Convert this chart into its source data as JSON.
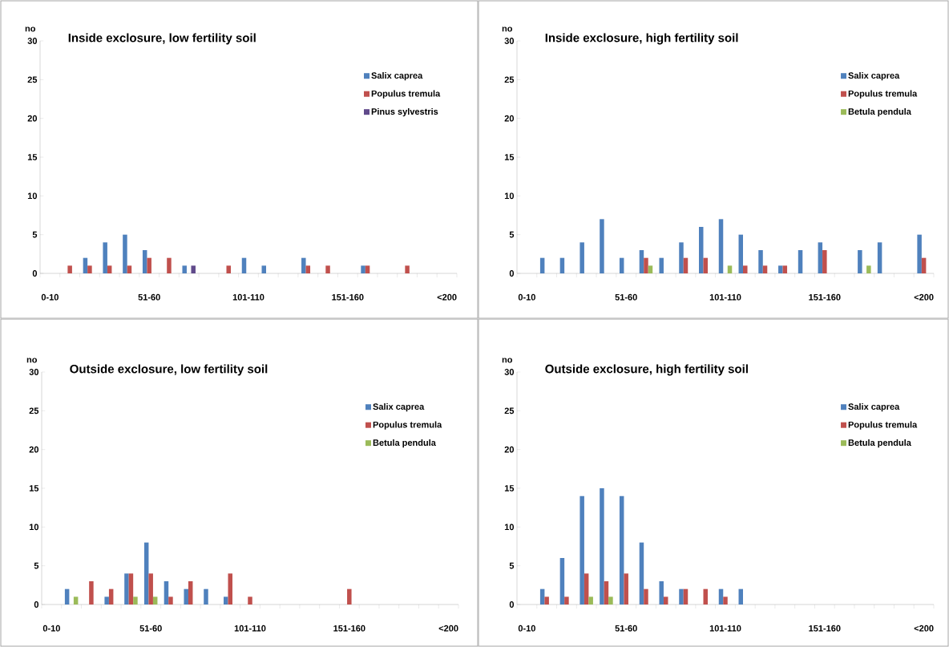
{
  "chart_data": [
    {
      "type": "bar",
      "title": "Inside exclosure, low fertility soil",
      "ylabel": "no",
      "categories": [
        "0-10",
        null,
        null,
        null,
        null,
        "51-60",
        null,
        null,
        null,
        null,
        "101-110",
        null,
        null,
        null,
        null,
        "151-160",
        null,
        null,
        null,
        null,
        "<200"
      ],
      "ylim": [
        0,
        30
      ],
      "yticks": [
        0,
        5,
        10,
        15,
        20,
        25,
        30
      ],
      "legend": "top right",
      "series": [
        {
          "name": "Salix caprea",
          "color": "#4f81bd",
          "values": [
            0,
            0,
            2,
            4,
            5,
            3,
            0,
            1,
            0,
            0,
            2,
            1,
            0,
            2,
            0,
            0,
            1,
            0,
            0,
            0,
            0
          ]
        },
        {
          "name": "Populus tremula",
          "color": "#c0504d",
          "values": [
            0,
            1,
            1,
            1,
            1,
            2,
            2,
            0,
            0,
            1,
            0,
            0,
            0,
            1,
            1,
            0,
            1,
            0,
            1,
            0,
            0
          ]
        },
        {
          "name": "Pinus sylvestris",
          "color": "#604a8b",
          "values": [
            0,
            0,
            0,
            0,
            0,
            0,
            0,
            1,
            0,
            0,
            0,
            0,
            0,
            0,
            0,
            0,
            0,
            0,
            0,
            0,
            0
          ]
        }
      ]
    },
    {
      "type": "bar",
      "title": "Inside exclosure, high fertility soil",
      "ylabel": "no",
      "categories": [
        "0-10",
        null,
        null,
        null,
        null,
        "51-60",
        null,
        null,
        null,
        null,
        "101-110",
        null,
        null,
        null,
        null,
        "151-160",
        null,
        null,
        null,
        null,
        "<200"
      ],
      "ylim": [
        0,
        30
      ],
      "yticks": [
        0,
        5,
        10,
        15,
        20,
        25,
        30
      ],
      "legend": "top right",
      "series": [
        {
          "name": "Salix caprea",
          "color": "#4f81bd",
          "values": [
            0,
            2,
            2,
            4,
            7,
            2,
            3,
            2,
            4,
            6,
            7,
            5,
            3,
            1,
            3,
            4,
            0,
            3,
            4,
            0,
            5
          ]
        },
        {
          "name": "Populus tremula",
          "color": "#c0504d",
          "values": [
            0,
            0,
            0,
            0,
            0,
            0,
            2,
            0,
            2,
            2,
            0,
            1,
            1,
            1,
            0,
            3,
            0,
            0,
            0,
            0,
            2
          ]
        },
        {
          "name": "Betula pendula",
          "color": "#9bbb59",
          "values": [
            0,
            0,
            0,
            0,
            0,
            0,
            1,
            0,
            0,
            0,
            1,
            0,
            0,
            0,
            0,
            0,
            0,
            1,
            0,
            0,
            0
          ]
        }
      ]
    },
    {
      "type": "bar",
      "title": "Outside exclosure, low fertility soil",
      "ylabel": "no",
      "categories": [
        "0-10",
        null,
        null,
        null,
        null,
        "51-60",
        null,
        null,
        null,
        null,
        "101-110",
        null,
        null,
        null,
        null,
        "151-160",
        null,
        null,
        null,
        null,
        "<200"
      ],
      "ylim": [
        0,
        30
      ],
      "yticks": [
        0,
        5,
        10,
        15,
        20,
        25,
        30
      ],
      "legend": "top right",
      "series": [
        {
          "name": "Salix caprea",
          "color": "#4f81bd",
          "values": [
            0,
            2,
            0,
            1,
            4,
            8,
            3,
            2,
            2,
            1,
            0,
            0,
            0,
            0,
            0,
            0,
            0,
            0,
            0,
            0,
            0
          ]
        },
        {
          "name": "Populus tremula",
          "color": "#c0504d",
          "values": [
            0,
            0,
            3,
            2,
            4,
            4,
            1,
            3,
            0,
            4,
            1,
            0,
            0,
            0,
            0,
            2,
            0,
            0,
            0,
            0,
            0
          ]
        },
        {
          "name": "Betula pendula",
          "color": "#9bbb59",
          "values": [
            0,
            1,
            0,
            0,
            1,
            1,
            0,
            0,
            0,
            0,
            0,
            0,
            0,
            0,
            0,
            0,
            0,
            0,
            0,
            0,
            0
          ]
        }
      ]
    },
    {
      "type": "bar",
      "title": "Outside exclosure, high fertility soil",
      "ylabel": "no",
      "categories": [
        "0-10",
        null,
        null,
        null,
        null,
        "51-60",
        null,
        null,
        null,
        null,
        "101-110",
        null,
        null,
        null,
        null,
        "151-160",
        null,
        null,
        null,
        null,
        "<200"
      ],
      "ylim": [
        0,
        30
      ],
      "yticks": [
        0,
        5,
        10,
        15,
        20,
        25,
        30
      ],
      "legend": "top right",
      "series": [
        {
          "name": "Salix caprea",
          "color": "#4f81bd",
          "values": [
            0,
            2,
            6,
            14,
            15,
            14,
            8,
            3,
            2,
            0,
            2,
            2,
            0,
            0,
            0,
            0,
            0,
            0,
            0,
            0,
            0
          ]
        },
        {
          "name": "Populus tremula",
          "color": "#c0504d",
          "values": [
            0,
            1,
            1,
            4,
            3,
            4,
            2,
            1,
            2,
            2,
            1,
            0,
            0,
            0,
            0,
            0,
            0,
            0,
            0,
            0,
            0
          ]
        },
        {
          "name": "Betula pendula",
          "color": "#9bbb59",
          "values": [
            0,
            0,
            0,
            1,
            1,
            0,
            0,
            0,
            0,
            0,
            0,
            0,
            0,
            0,
            0,
            0,
            0,
            0,
            0,
            0,
            0
          ]
        }
      ]
    }
  ]
}
